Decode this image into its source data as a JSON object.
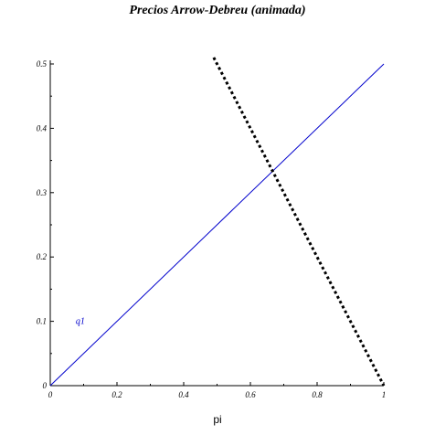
{
  "chart_data": {
    "type": "line",
    "title": "Precios Arrow-Debreu (animada)",
    "xlabel": "pi",
    "ylabel": "",
    "xlim": [
      0,
      1
    ],
    "ylim": [
      0,
      0.5
    ],
    "x_ticks": [
      "0",
      "0.2",
      "0.4",
      "0.6",
      "0.8",
      "1"
    ],
    "y_ticks": [
      "0",
      "0.1",
      "0.2",
      "0.3",
      "0.4",
      "0.5"
    ],
    "x_tick_values": [
      0,
      0.2,
      0.4,
      0.6,
      0.8,
      1
    ],
    "y_tick_values": [
      0,
      0.1,
      0.2,
      0.3,
      0.4,
      0.5
    ],
    "grid": false,
    "series": [
      {
        "name": "q1",
        "color": "#0000cc",
        "style": "solid",
        "label_at": {
          "x": 0.09,
          "y": 0.1
        },
        "points": [
          [
            0,
            0
          ],
          [
            1,
            0.5
          ]
        ]
      },
      {
        "color": "#000000",
        "style": "dotted",
        "points": [
          [
            0.49,
            0.51
          ],
          [
            1,
            0
          ]
        ]
      }
    ]
  }
}
